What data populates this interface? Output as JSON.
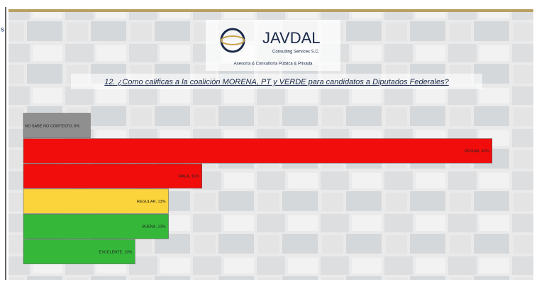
{
  "side_fragment": "s",
  "logo": {
    "name": "JAVDAL",
    "subtitle": "Consulting Services S.C.",
    "tagline": "Asesoría & Consultoría Pública & Privada"
  },
  "chart_data": {
    "type": "hbar",
    "title": "12. ¿Como calificas a la coalición MORENA, PT y VERDE para candidatos a Diputados Federales?",
    "values": [
      6,
      42,
      16,
      13,
      13,
      10
    ],
    "value_labels": [
      "NO SABE NO CONTESTO, 6%",
      "PESIMA, 42%",
      "MALA, 16%",
      "REGULAR, 13%",
      "BUENA, 13%",
      "EXCELENTE, 10%"
    ],
    "colors": [
      "#8f8f8f",
      "#f20d0d",
      "#f20d0d",
      "#fbd33a",
      "#35b83a",
      "#35b83a"
    ],
    "xlim": [
      0,
      45
    ]
  }
}
